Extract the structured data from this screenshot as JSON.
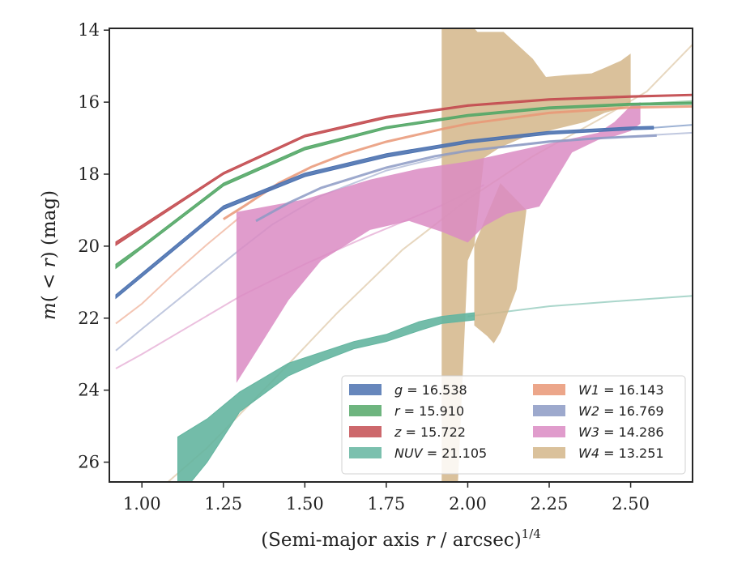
{
  "chart_data": {
    "type": "area",
    "xlabel_parts": [
      "(Semi-major axis ",
      "r",
      " / arcsec)",
      "1/4"
    ],
    "ylabel_parts": [
      "m",
      "( < ",
      "r",
      ") (mag)"
    ],
    "xlim": [
      0.9,
      2.69
    ],
    "ylim": [
      26.55,
      13.95
    ],
    "y_inverted": true,
    "grid": false,
    "legend_position": "lower right",
    "xticks": [
      "1.00",
      "1.25",
      "1.50",
      "1.75",
      "2.00",
      "2.25",
      "2.50"
    ],
    "xtick_values": [
      1.0,
      1.25,
      1.5,
      1.75,
      2.0,
      2.25,
      2.5
    ],
    "yticks": [
      "14",
      "16",
      "18",
      "20",
      "22",
      "24",
      "26"
    ],
    "ytick_values": [
      14,
      16,
      18,
      20,
      22,
      24,
      26
    ],
    "series": [
      {
        "key": "g",
        "label_name": "g",
        "label_value": "= 16.538",
        "color": "#4c72b0",
        "kind": "band",
        "data": [
          [
            0.92,
            21.35,
            21.45
          ],
          [
            1.0,
            20.75,
            20.85
          ],
          [
            1.25,
            18.88,
            18.98
          ],
          [
            1.5,
            17.97,
            18.07
          ],
          [
            1.75,
            17.43,
            17.53
          ],
          [
            2.0,
            17.06,
            17.14
          ],
          [
            2.25,
            16.81,
            16.89
          ],
          [
            2.5,
            16.69,
            16.77
          ],
          [
            2.57,
            16.67,
            16.75
          ]
        ],
        "fade": [
          [
            2.57,
            16.71
          ],
          [
            2.69,
            16.63
          ]
        ]
      },
      {
        "key": "r",
        "label_name": "r",
        "label_value": "= 15.910",
        "color": "#55a868",
        "kind": "band",
        "data": [
          [
            0.92,
            20.5,
            20.62
          ],
          [
            1.0,
            19.98,
            20.06
          ],
          [
            1.25,
            18.25,
            18.33
          ],
          [
            1.5,
            17.25,
            17.33
          ],
          [
            1.75,
            16.68,
            16.74
          ],
          [
            2.0,
            16.34,
            16.4
          ],
          [
            2.25,
            16.13,
            16.19
          ],
          [
            2.5,
            16.03,
            16.09
          ],
          [
            2.69,
            16.0,
            16.06
          ]
        ],
        "fade": [
          [
            2.5,
            16.06
          ],
          [
            2.69,
            15.97
          ]
        ]
      },
      {
        "key": "z",
        "label_name": "z",
        "label_value": "= 15.722",
        "color": "#c44e52",
        "kind": "band",
        "data": [
          [
            0.92,
            19.88,
            19.98
          ],
          [
            1.0,
            19.42,
            19.5
          ],
          [
            1.25,
            17.95,
            18.01
          ],
          [
            1.5,
            16.91,
            16.97
          ],
          [
            1.75,
            16.39,
            16.45
          ],
          [
            2.0,
            16.07,
            16.12
          ],
          [
            2.25,
            15.9,
            15.95
          ],
          [
            2.5,
            15.82,
            15.87
          ],
          [
            2.69,
            15.78,
            15.82
          ]
        ],
        "fade": null
      },
      {
        "key": "NUV",
        "label_name": "NUV",
        "label_value": "= 21.105",
        "color": "#64b5a0",
        "kind": "band",
        "data": [
          [
            1.11,
            25.3,
            27.0
          ],
          [
            1.2,
            24.8,
            26.0
          ],
          [
            1.3,
            24.05,
            24.6
          ],
          [
            1.45,
            23.25,
            23.6
          ],
          [
            1.55,
            22.95,
            23.2
          ],
          [
            1.65,
            22.65,
            22.85
          ],
          [
            1.75,
            22.45,
            22.65
          ],
          [
            1.85,
            22.1,
            22.35
          ],
          [
            1.92,
            21.95,
            22.15
          ],
          [
            2.02,
            21.85,
            22.05
          ]
        ],
        "fade": [
          [
            2.0,
            21.95
          ],
          [
            2.25,
            21.67
          ],
          [
            2.5,
            21.5
          ],
          [
            2.69,
            21.38
          ]
        ]
      },
      {
        "key": "W1",
        "label_name": "W1",
        "label_value": "= 16.143",
        "color": "#e99675",
        "kind": "line",
        "data": [
          [
            1.25,
            19.25
          ],
          [
            1.32,
            18.85
          ],
          [
            1.42,
            18.25
          ],
          [
            1.52,
            17.8
          ],
          [
            1.62,
            17.45
          ],
          [
            1.75,
            17.1
          ],
          [
            1.92,
            16.75
          ],
          [
            2.0,
            16.6
          ],
          [
            2.25,
            16.3
          ],
          [
            2.5,
            16.15
          ],
          [
            2.69,
            16.12
          ]
        ],
        "fade": [
          [
            0.92,
            22.15
          ],
          [
            1.0,
            21.6
          ],
          [
            1.1,
            20.75
          ],
          [
            1.2,
            19.95
          ],
          [
            1.3,
            19.2
          ]
        ]
      },
      {
        "key": "W2",
        "label_name": "W2",
        "label_value": "= 16.769",
        "color": "#8c9ac4",
        "kind": "line",
        "data": [
          [
            1.35,
            19.3
          ],
          [
            1.45,
            18.8
          ],
          [
            1.55,
            18.38
          ],
          [
            1.65,
            18.1
          ],
          [
            1.75,
            17.82
          ],
          [
            1.9,
            17.5
          ],
          [
            2.0,
            17.35
          ],
          [
            2.25,
            17.1
          ],
          [
            2.4,
            17.0
          ],
          [
            2.58,
            16.93
          ]
        ],
        "fade": [
          [
            0.92,
            22.9
          ],
          [
            1.0,
            22.3
          ],
          [
            1.15,
            21.2
          ],
          [
            1.3,
            20.1
          ],
          [
            1.4,
            19.4
          ],
          [
            1.55,
            18.6
          ],
          [
            1.75,
            17.9
          ],
          [
            2.0,
            17.35
          ],
          [
            2.25,
            17.08
          ],
          [
            2.5,
            16.95
          ],
          [
            2.69,
            16.85
          ]
        ]
      },
      {
        "key": "W3",
        "label_name": "W3",
        "label_value": "= 14.286",
        "color": "#da8bc3",
        "kind": "region",
        "polygon": [
          [
            1.29,
            19.05
          ],
          [
            1.5,
            18.7
          ],
          [
            1.7,
            18.15
          ],
          [
            1.85,
            17.85
          ],
          [
            2.0,
            17.65
          ],
          [
            2.1,
            17.45
          ],
          [
            2.2,
            17.25
          ],
          [
            2.3,
            17.05
          ],
          [
            2.4,
            16.85
          ],
          [
            2.45,
            16.55
          ],
          [
            2.5,
            16.1
          ],
          [
            2.53,
            16.0
          ],
          [
            2.53,
            16.6
          ],
          [
            2.5,
            16.8
          ],
          [
            2.45,
            16.95
          ],
          [
            2.4,
            17.05
          ],
          [
            2.32,
            17.4
          ],
          [
            2.22,
            18.9
          ],
          [
            2.12,
            19.1
          ],
          [
            2.05,
            19.45
          ],
          [
            2.0,
            19.9
          ],
          [
            1.92,
            19.6
          ],
          [
            1.82,
            19.3
          ],
          [
            1.7,
            19.55
          ],
          [
            1.55,
            20.4
          ],
          [
            1.45,
            21.5
          ],
          [
            1.36,
            22.8
          ],
          [
            1.29,
            23.8
          ]
        ],
        "fade": [
          [
            0.92,
            23.4
          ],
          [
            1.0,
            23.0
          ],
          [
            1.15,
            22.2
          ],
          [
            1.3,
            21.4
          ],
          [
            1.5,
            20.5
          ],
          [
            1.7,
            19.7
          ],
          [
            1.9,
            18.95
          ],
          [
            2.05,
            18.3
          ]
        ]
      },
      {
        "key": "W4",
        "label_name": "W4",
        "label_value": "= 13.251",
        "color": "#d4b68a",
        "kind": "region",
        "polygon": [
          [
            1.92,
            13.95
          ],
          [
            2.02,
            13.95
          ],
          [
            2.03,
            14.05
          ],
          [
            2.11,
            14.05
          ],
          [
            2.2,
            14.8
          ],
          [
            2.24,
            15.3
          ],
          [
            2.3,
            15.25
          ],
          [
            2.38,
            15.2
          ],
          [
            2.42,
            15.05
          ],
          [
            2.47,
            14.85
          ],
          [
            2.5,
            14.65
          ],
          [
            2.5,
            16.1
          ],
          [
            2.42,
            16.3
          ],
          [
            2.36,
            16.55
          ],
          [
            2.27,
            16.75
          ],
          [
            2.18,
            16.95
          ],
          [
            2.1,
            17.25
          ],
          [
            2.05,
            17.55
          ],
          [
            2.02,
            20.0
          ],
          [
            2.02,
            22.2
          ],
          [
            2.06,
            22.5
          ],
          [
            2.08,
            22.7
          ],
          [
            2.1,
            22.4
          ],
          [
            2.15,
            21.2
          ],
          [
            2.18,
            19.0
          ],
          [
            2.1,
            18.25
          ],
          [
            2.0,
            20.4
          ],
          [
            1.97,
            26.55
          ],
          [
            1.92,
            26.55
          ]
        ],
        "fade": [
          [
            1.08,
            26.55
          ],
          [
            1.2,
            25.6
          ],
          [
            1.4,
            23.75
          ],
          [
            1.6,
            21.85
          ],
          [
            1.8,
            20.1
          ],
          [
            2.0,
            18.7
          ],
          [
            2.2,
            17.5
          ],
          [
            2.4,
            16.5
          ],
          [
            2.55,
            15.7
          ],
          [
            2.69,
            14.4
          ]
        ]
      }
    ],
    "legend_layout": [
      [
        "g",
        "W1"
      ],
      [
        "r",
        "W2"
      ],
      [
        "z",
        "W3"
      ],
      [
        "NUV",
        "W4"
      ]
    ]
  }
}
